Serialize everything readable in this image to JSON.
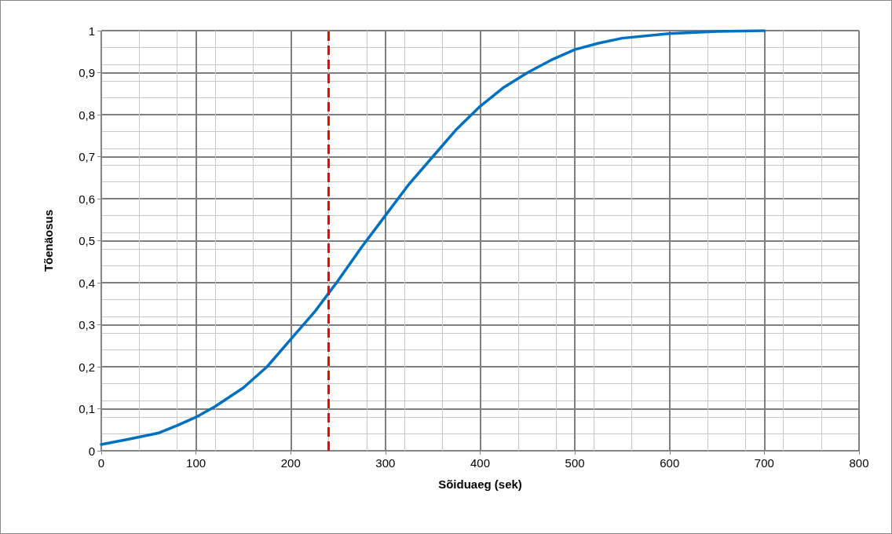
{
  "chart_data": {
    "type": "line",
    "xlabel": "Sõiduaeg (sek)",
    "ylabel": "Tõenäosus",
    "x": [
      0,
      30,
      60,
      80,
      100,
      120,
      150,
      175,
      200,
      225,
      240,
      250,
      275,
      300,
      325,
      350,
      375,
      400,
      425,
      450,
      475,
      500,
      525,
      550,
      600,
      650,
      700
    ],
    "series": [
      {
        "color": "#0070c0",
        "values": [
          0.015,
          0.028,
          0.042,
          0.06,
          0.08,
          0.105,
          0.15,
          0.2,
          0.265,
          0.33,
          0.375,
          0.405,
          0.485,
          0.56,
          0.635,
          0.7,
          0.765,
          0.82,
          0.865,
          0.9,
          0.93,
          0.955,
          0.97,
          0.982,
          0.993,
          0.998,
          1.0
        ]
      }
    ],
    "xlim": [
      0,
      800
    ],
    "xticks": [
      0,
      100,
      200,
      300,
      400,
      500,
      600,
      700,
      800
    ],
    "ylim": [
      0,
      1
    ],
    "yticks": [
      0,
      {
        "value": 0.1,
        "label": "0,1"
      },
      {
        "value": 0.2,
        "label": "0,2"
      },
      {
        "value": 0.3,
        "label": "0,3"
      },
      {
        "value": 0.4,
        "label": "0,4"
      },
      {
        "value": 0.5,
        "label": "0,5"
      },
      {
        "value": 0.6,
        "label": "0,6"
      },
      {
        "value": 0.7,
        "label": "0,7"
      },
      {
        "value": 0.8,
        "label": "0,8"
      },
      {
        "value": 0.9,
        "label": "0,9"
      },
      1
    ],
    "ref_lines": [
      {
        "axis": "x",
        "value": 240,
        "color": "#ff0000",
        "line_style": "dashed"
      }
    ],
    "grid": true,
    "marker": "none",
    "line_style": "solid"
  }
}
